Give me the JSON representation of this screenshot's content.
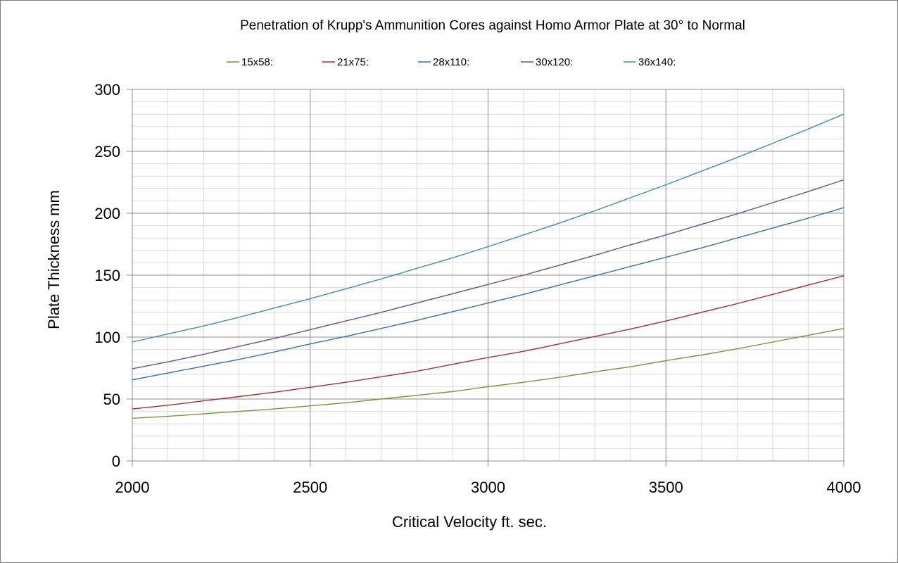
{
  "chart_data": {
    "type": "line",
    "title": "Penetration of Krupp's Ammunition Cores against Homo Armor Plate at 30° to Normal",
    "xlabel": "Critical Velocity ft. sec.",
    "ylabel": "Plate Thickness mm",
    "xlim": [
      2000,
      4000
    ],
    "ylim": [
      0,
      300
    ],
    "x_ticks": [
      2000,
      2500,
      3000,
      3500,
      4000
    ],
    "y_ticks": [
      0,
      50,
      100,
      150,
      200,
      250,
      300
    ],
    "x_minor_step": 100,
    "y_minor_step": 10,
    "grid": true,
    "legend_position": "top",
    "x": [
      2000,
      2100,
      2200,
      2300,
      2400,
      2500,
      2600,
      2700,
      2800,
      2900,
      3000,
      3100,
      3200,
      3300,
      3400,
      3500,
      3600,
      3700,
      3800,
      3900,
      4000
    ],
    "series": [
      {
        "name": "15x58:",
        "color": "#77933c",
        "values": [
          34.5,
          36,
          38,
          40,
          42,
          44.5,
          47,
          50,
          53,
          56,
          60,
          63.5,
          67.5,
          72,
          76,
          81,
          85.5,
          90.5,
          96,
          101.5,
          107
        ]
      },
      {
        "name": "21x75:",
        "color": "#a0302d",
        "values": [
          42,
          45,
          48.5,
          52,
          55.5,
          59.5,
          63.5,
          68,
          72.5,
          78,
          83.5,
          88.5,
          94.5,
          100.5,
          106.5,
          113,
          120,
          127,
          134.5,
          142,
          149.5
        ]
      },
      {
        "name": "28x110:",
        "color": "#3a6fa5",
        "values": [
          65.5,
          71,
          76.5,
          82,
          88,
          94.5,
          100.5,
          107,
          113.5,
          120.5,
          127.5,
          134.5,
          142,
          149.5,
          157,
          164.5,
          172,
          180,
          188,
          196,
          204.5
        ]
      },
      {
        "name": "30x120:",
        "color": "#6a4e8e",
        "values": [
          74.5,
          80,
          86,
          92.5,
          99,
          106,
          113,
          120,
          127.5,
          135,
          142.5,
          150,
          158,
          166,
          174.5,
          182.5,
          191,
          199.5,
          208.5,
          217.5,
          227
        ]
      },
      {
        "name": "36x140:",
        "color": "#3d8fb0",
        "values": [
          96,
          102.5,
          109,
          116,
          123.5,
          131,
          139,
          147,
          155.5,
          164,
          173,
          182.5,
          192,
          202,
          212.5,
          223,
          234,
          245,
          256.5,
          268,
          280
        ]
      }
    ]
  }
}
